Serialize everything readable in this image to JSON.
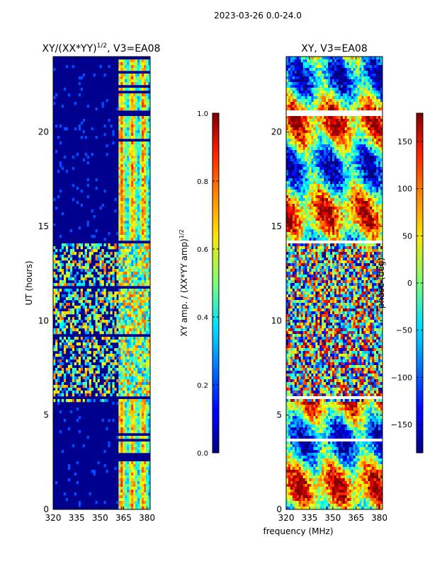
{
  "suptitle": "2023-03-26 0.0-24.0",
  "shared_xlabel": "frequency (MHz)",
  "chart_data": [
    {
      "type": "heatmap",
      "title_main": "XY/(XX*YY)",
      "title_sup": "1/2",
      "title_suffix": ", V3=EA08",
      "xlabel": "",
      "ylabel": "UT (hours)",
      "xlim": [
        320,
        382
      ],
      "ylim": [
        0,
        24
      ],
      "xticks": [
        320,
        335,
        350,
        365,
        380
      ],
      "yticks": [
        0,
        5,
        10,
        15,
        20
      ],
      "colorbar": {
        "label_main": "XY amp. / (XX*YY amp)",
        "label_sup": "1/2",
        "range": [
          0.0,
          1.0
        ],
        "ticks": [
          "0.0",
          "0.2",
          "0.4",
          "0.6",
          "0.8",
          "1.0"
        ],
        "tick_values": [
          0.0,
          0.2,
          0.4,
          0.6,
          0.8,
          1.0
        ],
        "colormap": "jet"
      }
    },
    {
      "type": "heatmap",
      "title_main": "XY, V3=EA08",
      "xlabel": "frequency (MHz)",
      "ylabel": "",
      "xlim": [
        320,
        382
      ],
      "ylim": [
        0,
        24
      ],
      "xticks": [
        320,
        335,
        350,
        365,
        380
      ],
      "yticks": [
        0,
        5,
        10,
        15,
        20
      ],
      "colorbar": {
        "label_main": "phase (deg)",
        "range": [
          -180,
          180
        ],
        "ticks": [
          "−150",
          "−100",
          "−50",
          "0",
          "50",
          "100",
          "150"
        ],
        "tick_values": [
          -150,
          -100,
          -50,
          0,
          50,
          100,
          150
        ],
        "colormap": "jet"
      }
    }
  ]
}
